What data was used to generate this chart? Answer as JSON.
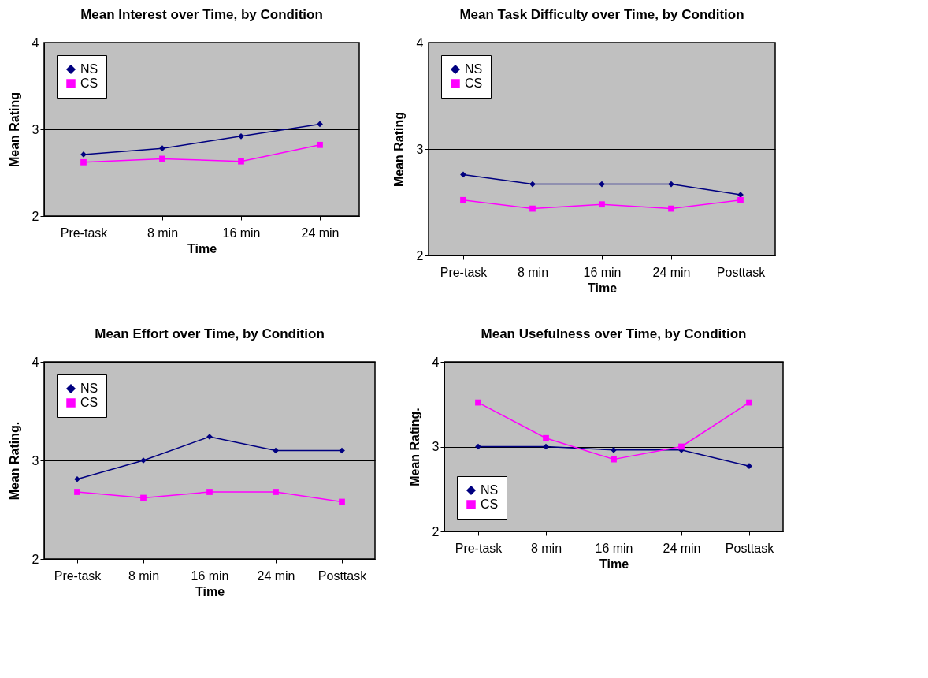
{
  "chart_data": [
    {
      "type": "line",
      "title": "Mean Interest over Time, by Condition",
      "xlabel": "Time",
      "ylabel": "Mean Rating",
      "categories": [
        "Pre-task",
        "8 min",
        "16 min",
        "24 min"
      ],
      "ylim": [
        2,
        4
      ],
      "yticks": [
        2,
        3,
        4
      ],
      "grid": "y",
      "legend": "top left",
      "series": [
        {
          "name": "NS",
          "color": "#000080",
          "marker": "diamond",
          "values": [
            2.71,
            2.78,
            2.92,
            3.06
          ]
        },
        {
          "name": "CS",
          "color": "#ff00ff",
          "marker": "square",
          "values": [
            2.62,
            2.66,
            2.63,
            2.82
          ]
        }
      ]
    },
    {
      "type": "line",
      "title": "Mean Task Difficulty over Time, by Condition",
      "xlabel": "Time",
      "ylabel": "Mean Rating",
      "categories": [
        "Pre-task",
        "8 min",
        "16 min",
        "24 min",
        "Posttask"
      ],
      "ylim": [
        2,
        4
      ],
      "yticks": [
        2,
        3,
        4
      ],
      "grid": "y",
      "legend": "top left",
      "series": [
        {
          "name": "NS",
          "color": "#000080",
          "marker": "diamond",
          "values": [
            2.76,
            2.67,
            2.67,
            2.67,
            2.57
          ]
        },
        {
          "name": "CS",
          "color": "#ff00ff",
          "marker": "square",
          "values": [
            2.52,
            2.44,
            2.48,
            2.44,
            2.52
          ]
        }
      ]
    },
    {
      "type": "line",
      "title": "Mean Effort over Time, by Condition",
      "xlabel": "Time",
      "ylabel": "Mean Rating.",
      "categories": [
        "Pre-task",
        "8 min",
        "16 min",
        "24 min",
        "Posttask"
      ],
      "ylim": [
        2,
        4
      ],
      "yticks": [
        2,
        3,
        4
      ],
      "grid": "y",
      "legend": "top left",
      "series": [
        {
          "name": "NS",
          "color": "#000080",
          "marker": "diamond",
          "values": [
            2.81,
            3.0,
            3.24,
            3.1,
            3.1
          ]
        },
        {
          "name": "CS",
          "color": "#ff00ff",
          "marker": "square",
          "values": [
            2.68,
            2.62,
            2.68,
            2.68,
            2.58
          ]
        }
      ]
    },
    {
      "type": "line",
      "title": "Mean Usefulness over Time, by Condition",
      "xlabel": "Time",
      "ylabel": "Mean Rating.",
      "categories": [
        "Pre-task",
        "8 min",
        "16 min",
        "24 min",
        "Posttask"
      ],
      "ylim": [
        2,
        4
      ],
      "yticks": [
        2,
        3,
        4
      ],
      "grid": "y",
      "legend": "bottom left",
      "series": [
        {
          "name": "NS",
          "color": "#000080",
          "marker": "diamond",
          "values": [
            3.0,
            3.0,
            2.96,
            2.96,
            2.77
          ]
        },
        {
          "name": "CS",
          "color": "#ff00ff",
          "marker": "square",
          "values": [
            3.52,
            3.1,
            2.85,
            3.0,
            3.52
          ]
        }
      ]
    }
  ]
}
